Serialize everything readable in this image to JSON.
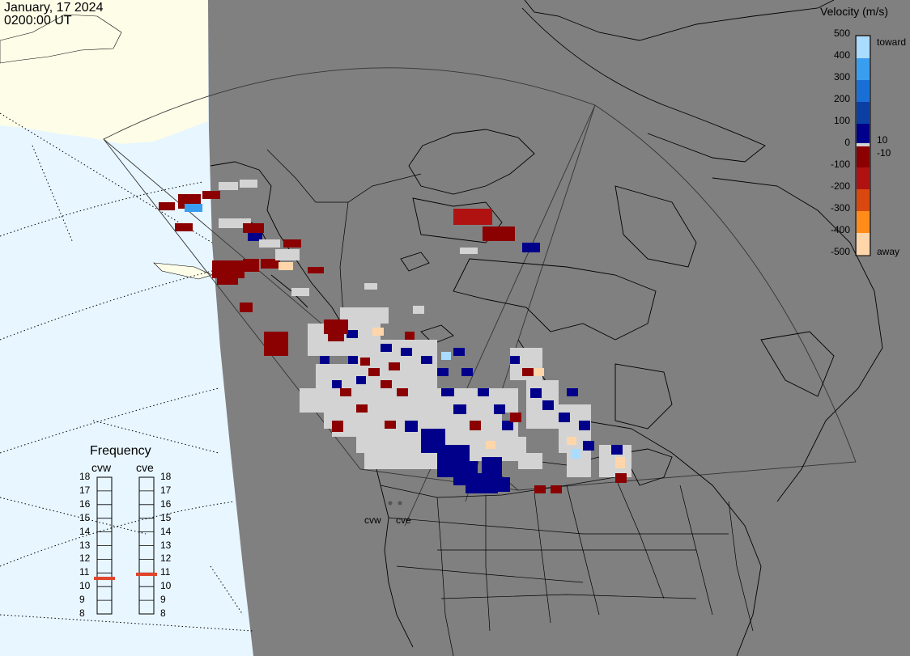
{
  "header": {
    "date": "January, 17 2024",
    "time": "0200:00 UT"
  },
  "legend": {
    "title": "Velocity (m/s)",
    "ticks": [
      "500",
      "400",
      "300",
      "200",
      "100",
      "0",
      "-100",
      "-200",
      "-300",
      "-400",
      "-500"
    ],
    "label_toward": "toward",
    "label_away": "away",
    "label_plus10": "10",
    "label_minus10": "-10",
    "colors": [
      "#ffd6aa",
      "#ff8c1a",
      "#d9480f",
      "#b01212",
      "#8b0000",
      "#00008b",
      "#0b3fa3",
      "#1a6fd6",
      "#3a9ef0",
      "#a9dcff"
    ]
  },
  "frequency": {
    "title": "Frequency",
    "radars": [
      "cvw",
      "cve"
    ],
    "scale": [
      "18",
      "17",
      "16",
      "15",
      "14",
      "13",
      "12",
      "11",
      "10",
      "9",
      "8"
    ],
    "cvw_mhz": 10.6,
    "cve_mhz": 10.9,
    "marker_color": "#e0442a"
  },
  "map": {
    "radar_labels": [
      "cvw",
      "cve"
    ],
    "colors": {
      "land": "#808080",
      "ocean": "#e8f6ff",
      "ice": "#fdfde8",
      "ground_scatter": "#d3d3d3"
    }
  }
}
